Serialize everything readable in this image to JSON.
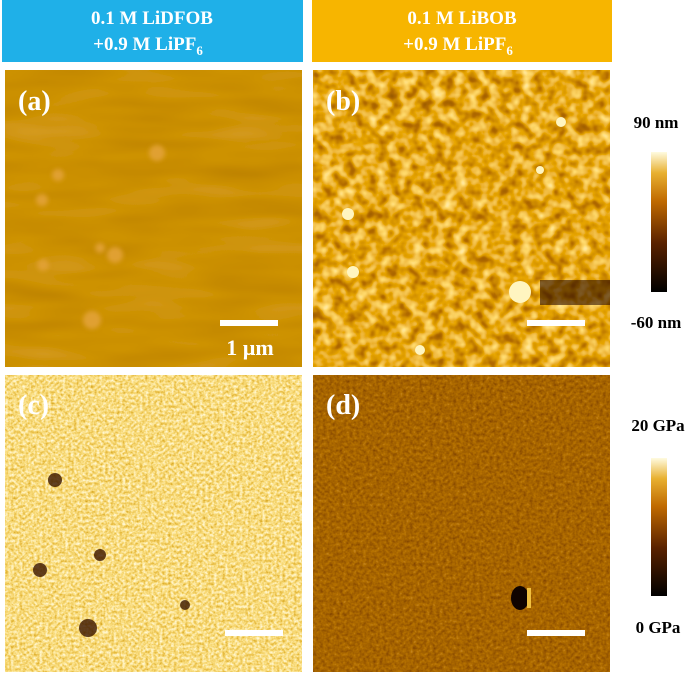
{
  "headers": [
    {
      "line1": "0.1 M LiDFOB",
      "line2": "+0.9 M LiPF",
      "line2_sub": "6"
    },
    {
      "line1": "0.1 M LiBOB",
      "line2": "+0.9 M LiPF",
      "line2_sub": "6"
    }
  ],
  "panels": [
    {
      "label": "(a)",
      "scale_label": "1 µm"
    },
    {
      "label": "(b)"
    },
    {
      "label": "(c)"
    },
    {
      "label": "(d)"
    }
  ],
  "colorbars": [
    {
      "max_label": "90 nm",
      "min_label": "-60 nm"
    },
    {
      "max_label": "20 GPa",
      "min_label": "0 GPa"
    }
  ]
}
